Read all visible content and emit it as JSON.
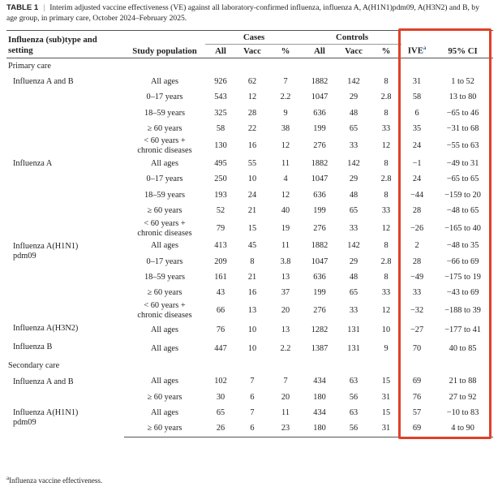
{
  "caption": {
    "label": "TABLE 1",
    "text": "Interim adjusted vaccine effectiveness (VE) against all laboratory-confirmed influenza, influenza A, A(H1N1)pdm09, A(H3N2) and B, by age group, in primary care, October 2024–February 2025."
  },
  "table": {
    "headers": {
      "type": "Influenza (sub)type and setting",
      "population": "Study population",
      "cases": "Cases",
      "controls": "Controls",
      "sub": [
        "All",
        "Vacc",
        "%",
        "All",
        "Vacc",
        "%"
      ],
      "ive": "IVE",
      "ive_note": "a",
      "ci": "95% CI"
    },
    "sections": [
      {
        "title": "Primary care",
        "groups": [
          {
            "label": "Influenza A and B",
            "rows": [
              [
                "All ages",
                "926",
                "62",
                "7",
                "1882",
                "142",
                "8",
                "31",
                "1 to 52"
              ],
              [
                "0–17 years",
                "543",
                "12",
                "2.2",
                "1047",
                "29",
                "2.8",
                "58",
                "13 to 80"
              ],
              [
                "18–59 years",
                "325",
                "28",
                "9",
                "636",
                "48",
                "8",
                "6",
                "−65 to 46"
              ],
              [
                "≥ 60 years",
                "58",
                "22",
                "38",
                "199",
                "65",
                "33",
                "35",
                "−31 to 68"
              ],
              [
                "< 60 years +\nchronic diseases",
                "130",
                "16",
                "12",
                "276",
                "33",
                "12",
                "24",
                "−55 to 63"
              ]
            ]
          },
          {
            "label": "Influenza A",
            "rows": [
              [
                "All ages",
                "495",
                "55",
                "11",
                "1882",
                "142",
                "8",
                "−1",
                "−49 to 31"
              ],
              [
                "0–17 years",
                "250",
                "10",
                "4",
                "1047",
                "29",
                "2.8",
                "24",
                "−65 to 65"
              ],
              [
                "18–59 years",
                "193",
                "24",
                "12",
                "636",
                "48",
                "8",
                "−44",
                "−159 to 20"
              ],
              [
                "≥ 60 years",
                "52",
                "21",
                "40",
                "199",
                "65",
                "33",
                "28",
                "−48 to 65"
              ],
              [
                "< 60 years +\nchronic diseases",
                "79",
                "15",
                "19",
                "276",
                "33",
                "12",
                "−26",
                "−165 to 40"
              ]
            ]
          },
          {
            "label": "Influenza A(H1N1)\npdm09",
            "rows": [
              [
                "All ages",
                "413",
                "45",
                "11",
                "1882",
                "142",
                "8",
                "2",
                "−48 to 35"
              ],
              [
                "0–17 years",
                "209",
                "8",
                "3.8",
                "1047",
                "29",
                "2.8",
                "28",
                "−66 to 69"
              ],
              [
                "18–59 years",
                "161",
                "21",
                "13",
                "636",
                "48",
                "8",
                "−49",
                "−175 to 19"
              ],
              [
                "≥ 60 years",
                "43",
                "16",
                "37",
                "199",
                "65",
                "33",
                "33",
                "−43 to 69"
              ],
              [
                "< 60 years +\nchronic diseases",
                "66",
                "13",
                "20",
                "276",
                "33",
                "12",
                "−32",
                "−188 to 39"
              ]
            ]
          },
          {
            "label": "Influenza A(H3N2)",
            "rows": [
              [
                "All ages",
                "76",
                "10",
                "13",
                "1282",
                "131",
                "10",
                "−27",
                "−177 to 41"
              ]
            ]
          },
          {
            "label": "Influenza B",
            "rows": [
              [
                "All ages",
                "447",
                "10",
                "2.2",
                "1387",
                "131",
                "9",
                "70",
                "40 to 85"
              ]
            ]
          }
        ]
      },
      {
        "title": "Secondary care",
        "groups": [
          {
            "label": "Influenza A and B",
            "rows": [
              [
                "All ages",
                "102",
                "7",
                "7",
                "434",
                "63",
                "15",
                "69",
                "21 to 88"
              ],
              [
                "≥ 60 years",
                "30",
                "6",
                "20",
                "180",
                "56",
                "31",
                "76",
                "27 to 92"
              ]
            ]
          },
          {
            "label": "Influenza A(H1N1)\npdm09",
            "rows": [
              [
                "All ages",
                "65",
                "7",
                "11",
                "434",
                "63",
                "15",
                "57",
                "−10 to 83"
              ],
              [
                "≥ 60 years",
                "26",
                "6",
                "23",
                "180",
                "56",
                "31",
                "69",
                "4 to 90"
              ]
            ]
          }
        ]
      }
    ]
  },
  "footnote": {
    "mark": "a",
    "text": "Influenza vaccine effectiveness."
  }
}
